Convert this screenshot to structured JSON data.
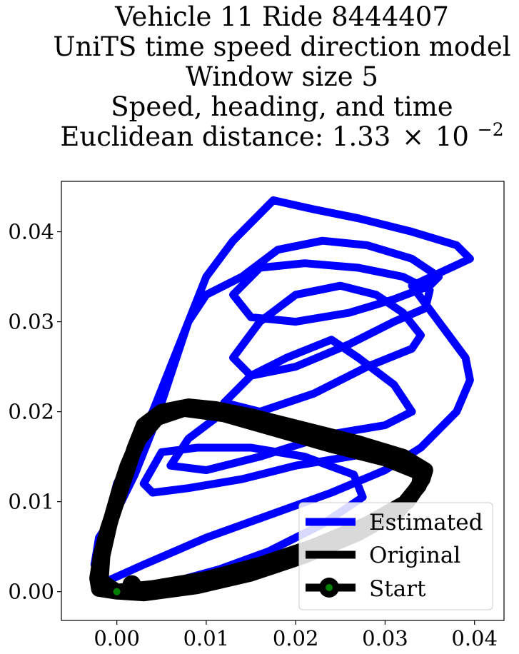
{
  "chart_data": {
    "type": "line",
    "title_lines": [
      "Vehicle 11 Ride 8444407",
      "UniTS time speed direction model",
      "Window size 5",
      "Speed, heading, and time"
    ],
    "title_metric_label": "Euclidean distance: ",
    "title_metric_mantissa": "1.33",
    "title_metric_times": "×",
    "title_metric_base": "10",
    "title_metric_exponent": "−2",
    "x_ticks": [
      "0.00",
      "0.01",
      "0.02",
      "0.03",
      "0.04"
    ],
    "y_ticks": [
      "0.00",
      "0.01",
      "0.02",
      "0.03",
      "0.04"
    ],
    "xlim": [
      -0.0062,
      0.0433
    ],
    "ylim": [
      -0.0032,
      0.0456
    ],
    "grid": false,
    "legend_position": "lower-right",
    "series": [
      {
        "name": "Estimated",
        "color": "#0000ff",
        "points": [
          [
            0.0017,
            0.0002
          ],
          [
            0.006,
            0.001
          ],
          [
            0.0115,
            0.0025
          ],
          [
            0.017,
            0.0045
          ],
          [
            0.023,
            0.0075
          ],
          [
            0.0275,
            0.0105
          ],
          [
            0.0265,
            0.013
          ],
          [
            0.021,
            0.015
          ],
          [
            0.015,
            0.016
          ],
          [
            0.009,
            0.016
          ],
          [
            0.005,
            0.0155
          ],
          [
            0.003,
            0.012
          ],
          [
            0.004,
            0.011
          ],
          [
            0.008,
            0.0115
          ],
          [
            0.014,
            0.0125
          ],
          [
            0.02,
            0.014
          ],
          [
            0.026,
            0.015
          ],
          [
            0.029,
            0.0155
          ],
          [
            0.025,
            0.017
          ],
          [
            0.018,
            0.019
          ],
          [
            0.012,
            0.02
          ],
          [
            0.008,
            0.017
          ],
          [
            0.006,
            0.014
          ],
          [
            0.01,
            0.0135
          ],
          [
            0.016,
            0.015
          ],
          [
            0.024,
            0.0175
          ],
          [
            0.03,
            0.0185
          ],
          [
            0.033,
            0.02
          ],
          [
            0.031,
            0.023
          ],
          [
            0.027,
            0.026
          ],
          [
            0.024,
            0.028
          ],
          [
            0.019,
            0.026
          ],
          [
            0.015,
            0.024
          ],
          [
            0.012,
            0.021
          ],
          [
            0.016,
            0.02
          ],
          [
            0.022,
            0.022
          ],
          [
            0.028,
            0.025
          ],
          [
            0.033,
            0.027
          ],
          [
            0.034,
            0.0285
          ],
          [
            0.032,
            0.031
          ],
          [
            0.029,
            0.033
          ],
          [
            0.025,
            0.034
          ],
          [
            0.02,
            0.033
          ],
          [
            0.016,
            0.03
          ],
          [
            0.013,
            0.026
          ],
          [
            0.015,
            0.024
          ],
          [
            0.02,
            0.025
          ],
          [
            0.026,
            0.0275
          ],
          [
            0.031,
            0.03
          ],
          [
            0.0345,
            0.0315
          ],
          [
            0.035,
            0.0335
          ],
          [
            0.032,
            0.035
          ],
          [
            0.027,
            0.036
          ],
          [
            0.021,
            0.0365
          ],
          [
            0.016,
            0.036
          ],
          [
            0.013,
            0.033
          ],
          [
            0.015,
            0.0305
          ],
          [
            0.02,
            0.03
          ],
          [
            0.026,
            0.031
          ],
          [
            0.031,
            0.0325
          ],
          [
            0.035,
            0.034
          ],
          [
            0.036,
            0.035
          ],
          [
            0.033,
            0.037
          ],
          [
            0.028,
            0.0385
          ],
          [
            0.023,
            0.039
          ],
          [
            0.018,
            0.038
          ],
          [
            0.014,
            0.035
          ],
          [
            0.01,
            0.033
          ],
          [
            0.008,
            0.03
          ],
          [
            0.006,
            0.025
          ],
          [
            0.004,
            0.02
          ],
          [
            0.002,
            0.016
          ],
          [
            0.0,
            0.012
          ],
          [
            -0.001,
            0.008
          ],
          [
            -0.002,
            0.004
          ],
          [
            -0.0015,
            0.001
          ],
          [
            0.003,
            0.003
          ],
          [
            0.01,
            0.006
          ],
          [
            0.017,
            0.0085
          ],
          [
            0.024,
            0.011
          ],
          [
            0.03,
            0.0135
          ],
          [
            0.034,
            0.016
          ],
          [
            0.038,
            0.02
          ],
          [
            0.0395,
            0.0235
          ],
          [
            0.039,
            0.026
          ],
          [
            0.036,
            0.03
          ],
          [
            0.033,
            0.034
          ],
          [
            0.0395,
            0.037
          ],
          [
            0.038,
            0.0385
          ],
          [
            0.033,
            0.04
          ],
          [
            0.027,
            0.0415
          ],
          [
            0.022,
            0.0425
          ],
          [
            0.0175,
            0.0435
          ],
          [
            0.016,
            0.042
          ],
          [
            0.013,
            0.039
          ],
          [
            0.01,
            0.035
          ],
          [
            0.008,
            0.03
          ],
          [
            0.006,
            0.024
          ],
          [
            0.004,
            0.018
          ],
          [
            0.002,
            0.013
          ],
          [
            0.0,
            0.009
          ],
          [
            -0.002,
            0.006
          ],
          [
            -0.0025,
            0.003
          ]
        ]
      },
      {
        "name": "Original",
        "color": "#000000",
        "points": [
          [
            0.0,
            0.0
          ],
          [
            0.004,
            0.0004
          ],
          [
            0.01,
            0.0014
          ],
          [
            0.016,
            0.003
          ],
          [
            0.022,
            0.005
          ],
          [
            0.028,
            0.0075
          ],
          [
            0.0325,
            0.01
          ],
          [
            0.0342,
            0.0125
          ],
          [
            0.0345,
            0.0135
          ],
          [
            0.032,
            0.015
          ],
          [
            0.027,
            0.0165
          ],
          [
            0.021,
            0.018
          ],
          [
            0.015,
            0.0195
          ],
          [
            0.011,
            0.0203
          ],
          [
            0.008,
            0.0206
          ],
          [
            0.005,
            0.02
          ],
          [
            0.003,
            0.0185
          ],
          [
            0.002,
            0.016
          ],
          [
            0.001,
            0.013
          ],
          [
            0.0,
            0.01
          ],
          [
            -0.001,
            0.007
          ],
          [
            -0.0018,
            0.004
          ],
          [
            -0.0022,
            0.0015
          ],
          [
            -0.002,
            0.0003
          ],
          [
            0.0,
            0.0
          ],
          [
            0.003,
            -0.0002
          ],
          [
            0.009,
            0.0006
          ],
          [
            0.015,
            0.002
          ],
          [
            0.021,
            0.004
          ],
          [
            0.027,
            0.0065
          ],
          [
            0.0315,
            0.009
          ],
          [
            0.0338,
            0.0118
          ],
          [
            0.034,
            0.0132
          ],
          [
            0.03,
            0.0148
          ],
          [
            0.024,
            0.0163
          ],
          [
            0.018,
            0.018
          ],
          [
            0.012,
            0.0197
          ],
          [
            0.0075,
            0.0203
          ],
          [
            0.0045,
            0.0193
          ],
          [
            0.0025,
            0.017
          ],
          [
            0.0012,
            0.014
          ],
          [
            0.0002,
            0.011
          ],
          [
            -0.0008,
            0.0075
          ],
          [
            -0.0016,
            0.004
          ],
          [
            -0.0018,
            0.0012
          ],
          [
            0.0,
            0.0
          ]
        ]
      },
      {
        "name": "Start",
        "color": "#000000",
        "marker_color": "#008000",
        "points": [
          [
            0.0,
            0.0
          ]
        ]
      }
    ]
  }
}
